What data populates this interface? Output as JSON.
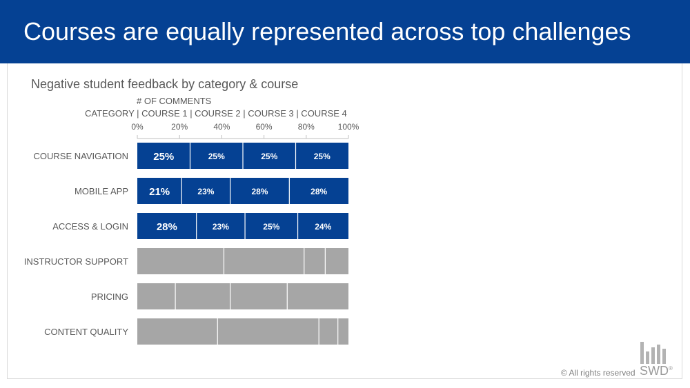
{
  "title": "Courses are equally represented across top challenges",
  "subtitle": "Negative student feedback by category & course",
  "axis_title": "# OF COMMENTS",
  "legend_line": "CATEGORY  |  COURSE 1  |  COURSE 2  |  COURSE 3  |  COURSE 4",
  "footer": {
    "copyright": "© All rights reserved",
    "brand": "SWD",
    "brand_mark": "®"
  },
  "colors": {
    "header": "#054193",
    "highlight": "#054193",
    "muted": "#a6a6a6",
    "text": "#595959"
  },
  "chart_data": {
    "type": "bar",
    "orientation": "horizontal",
    "stacked": true,
    "percent": true,
    "xlim": [
      0,
      100
    ],
    "xticks": [
      "0%",
      "20%",
      "40%",
      "60%",
      "80%",
      "100%"
    ],
    "categories": [
      "COURSE NAVIGATION",
      "MOBILE APP",
      "ACCESS & LOGIN",
      "INSTRUCTOR SUPPORT",
      "PRICING",
      "CONTENT QUALITY"
    ],
    "series": [
      {
        "name": "COURSE 1",
        "values": [
          25,
          21,
          28,
          41,
          18,
          38
        ]
      },
      {
        "name": "COURSE 2",
        "values": [
          25,
          23,
          23,
          38,
          26,
          48
        ]
      },
      {
        "name": "COURSE 3",
        "values": [
          25,
          28,
          25,
          10,
          27,
          9
        ]
      },
      {
        "name": "COURSE 4",
        "values": [
          25,
          28,
          24,
          11,
          29,
          5
        ]
      }
    ],
    "labels": [
      [
        "25%",
        "25%",
        "25%",
        "25%"
      ],
      [
        "21%",
        "23%",
        "28%",
        "28%"
      ],
      [
        "28%",
        "23%",
        "25%",
        "24%"
      ],
      [
        "",
        "",
        "",
        ""
      ],
      [
        "",
        "",
        "",
        ""
      ],
      [
        "",
        "",
        "",
        ""
      ]
    ],
    "highlighted_rows": [
      0,
      1,
      2
    ]
  }
}
